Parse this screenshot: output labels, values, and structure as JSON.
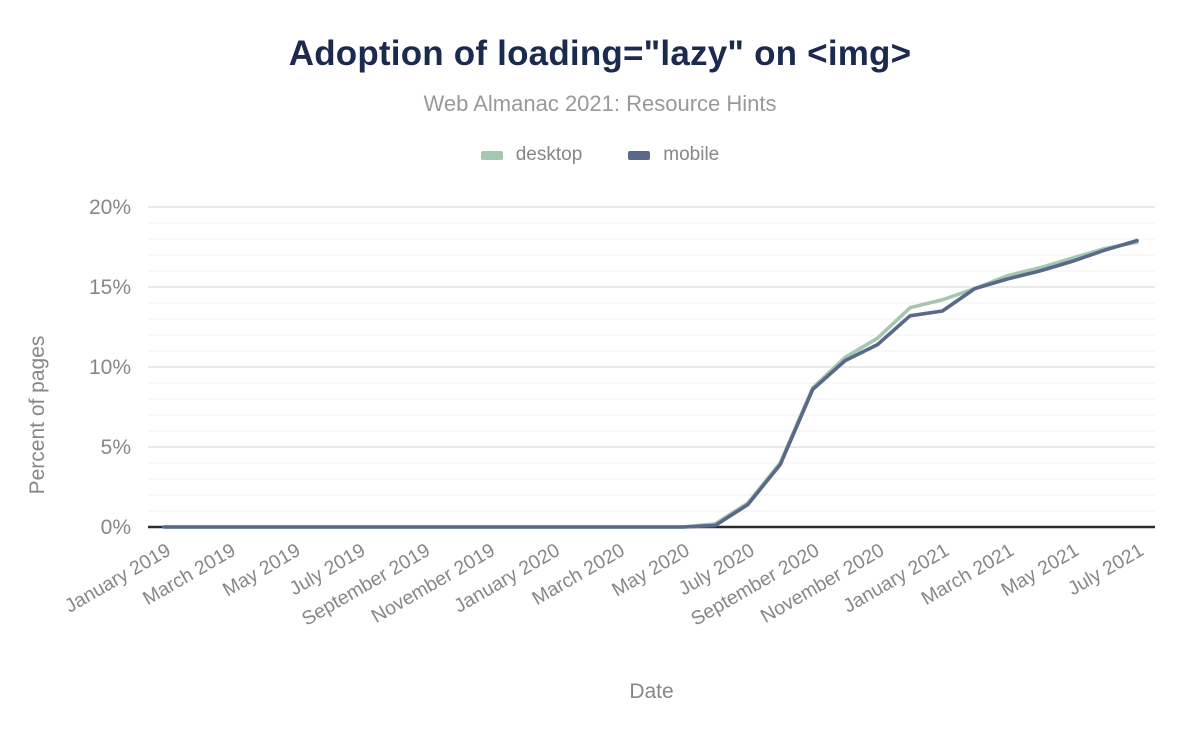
{
  "header": {
    "title": "Adoption of loading=\"lazy\" on <img>",
    "subtitle": "Web Almanac 2021: Resource Hints"
  },
  "legend": {
    "items": [
      {
        "label": "desktop",
        "color": "#a6c7af"
      },
      {
        "label": "mobile",
        "color": "#58698b"
      }
    ]
  },
  "chart_data": {
    "type": "line",
    "title": "Adoption of loading=\"lazy\" on <img>",
    "subtitle": "Web Almanac 2021: Resource Hints",
    "xlabel": "Date",
    "ylabel": "Percent of pages",
    "ylim": [
      0,
      20
    ],
    "y_tick_labels": [
      "0%",
      "5%",
      "10%",
      "15%",
      "20%"
    ],
    "y_tick_values": [
      0,
      5,
      10,
      15,
      20
    ],
    "minor_grid_step_percent": 1,
    "grid": "horizontal gridlines on, major every 5%, faint minor every 1%",
    "legend_position": "top-center",
    "x": [
      "January 2019",
      "February 2019",
      "March 2019",
      "April 2019",
      "May 2019",
      "June 2019",
      "July 2019",
      "August 2019",
      "September 2019",
      "October 2019",
      "November 2019",
      "December 2019",
      "January 2020",
      "February 2020",
      "March 2020",
      "April 2020",
      "May 2020",
      "June 2020",
      "July 2020",
      "August 2020",
      "September 2020",
      "October 2020",
      "November 2020",
      "December 2020",
      "January 2021",
      "February 2021",
      "March 2021",
      "April 2021",
      "May 2021",
      "June 2021",
      "July 2021"
    ],
    "x_tick_labels": [
      "January 2019",
      "March 2019",
      "May 2019",
      "July 2019",
      "September 2019",
      "November 2019",
      "January 2020",
      "March 2020",
      "May 2020",
      "July 2020",
      "September 2020",
      "November 2020",
      "January 2021",
      "March 2021",
      "May 2021",
      "July 2021"
    ],
    "series": [
      {
        "name": "desktop",
        "color": "#a6c7af",
        "values": [
          0,
          0,
          0,
          0,
          0,
          0,
          0,
          0,
          0,
          0,
          0,
          0,
          0,
          0,
          0,
          0,
          0,
          0.2,
          1.5,
          4.0,
          8.7,
          10.6,
          11.8,
          13.7,
          14.2,
          14.9,
          15.7,
          16.2,
          16.8,
          17.4,
          17.8
        ]
      },
      {
        "name": "mobile",
        "color": "#58698b",
        "values": [
          0,
          0,
          0,
          0,
          0,
          0,
          0,
          0,
          0,
          0,
          0,
          0,
          0,
          0,
          0,
          0,
          0,
          0.1,
          1.4,
          3.9,
          8.6,
          10.4,
          11.4,
          13.2,
          13.5,
          14.9,
          15.5,
          16.0,
          16.6,
          17.3,
          17.9
        ]
      }
    ]
  },
  "colors": {
    "title": "#1b2a4e",
    "subtitle": "#97999c",
    "axis_text": "#85878a",
    "axis_line": "#2b2b2b",
    "major_gridline": "#e4e4e4",
    "minor_gridline": "#f4f4f4",
    "background": "#ffffff"
  }
}
